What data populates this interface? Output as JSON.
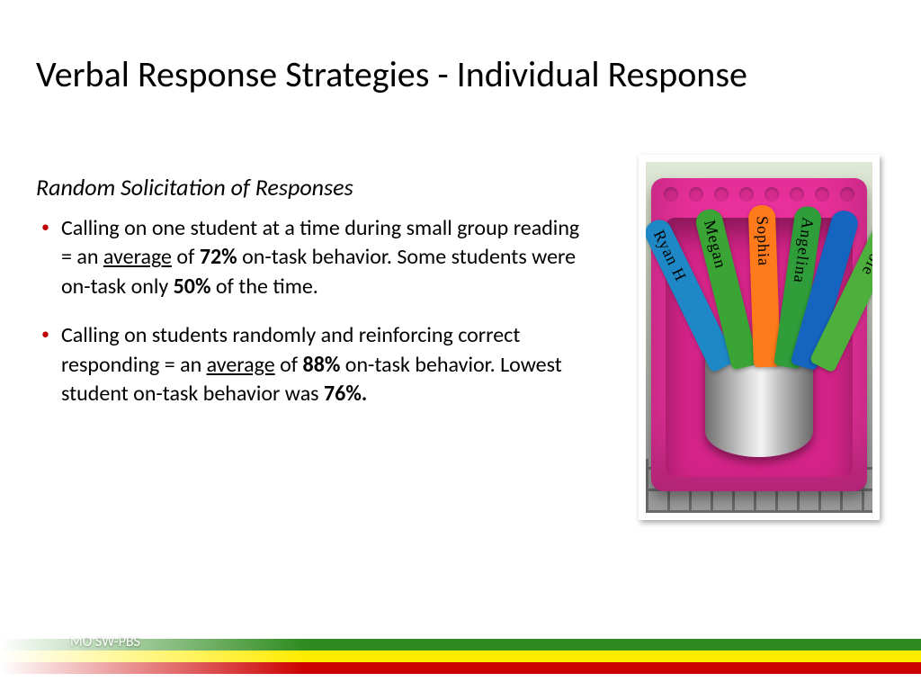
{
  "title": "Verbal Response Strategies - Individual Response",
  "subtitle": "Random Solicitation of Responses",
  "bullets": [
    {
      "pre": "Calling on one student at a time during small group reading = an ",
      "underlined": "average",
      "mid1": " of ",
      "bold1": "72%",
      "mid2": " on-task behavior. Some students were on-task only ",
      "bold2": "50%",
      "post": " of the time."
    },
    {
      "pre": "Calling on students randomly and reinforcing correct responding = an ",
      "underlined": "average",
      "mid1": " of ",
      "bold1": "88%",
      "mid2": " on-task behavior. Lowest student on-task behavior was ",
      "bold2": "76%.",
      "post": ""
    }
  ],
  "sticks": [
    {
      "name": "Ryan H",
      "color": "#1e88c7",
      "angle": -26,
      "offset": -54
    },
    {
      "name": "Megan",
      "color": "#3aa535",
      "angle": -14,
      "offset": -30
    },
    {
      "name": "Sophia",
      "color": "#ff7a1a",
      "angle": -2,
      "offset": -6
    },
    {
      "name": "Angelina",
      "color": "#2f9e3a",
      "angle": 8,
      "offset": 16
    },
    {
      "name": "",
      "color": "#1565c0",
      "angle": 16,
      "offset": 34
    },
    {
      "name": "Nicole",
      "color": "#4db03d",
      "angle": 26,
      "offset": 54
    }
  ],
  "footer": {
    "label": "MO SW-PBS",
    "colors": {
      "green": "#2e8b1f",
      "yellow": "#ffeb00",
      "red": "#cc0000"
    }
  },
  "image": {
    "description": "Pink plastic basket with silver pail holding colored popsicle sticks with student names",
    "basket_color": "#e8309a",
    "pail_gradient": [
      "#6f6f6f",
      "#d9d9d9",
      "#f4f4f4",
      "#bcbcbc",
      "#6a6a6a"
    ],
    "frame_color": "#ffffff"
  }
}
